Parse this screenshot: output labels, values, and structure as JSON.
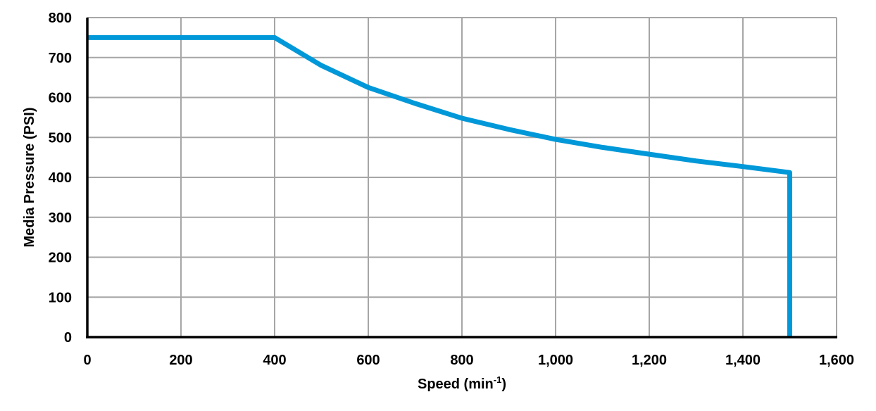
{
  "chart_data": {
    "type": "line",
    "title": "",
    "xlabel": "Speed (min-1)",
    "xlabel_main": "Speed (min",
    "xlabel_sup": "-1",
    "xlabel_close": ")",
    "ylabel": "Media Pressure (PSI)",
    "xlim": [
      0,
      1600
    ],
    "ylim": [
      0,
      800
    ],
    "x_ticks": [
      "0",
      "200",
      "400",
      "600",
      "800",
      "1,000",
      "1,200",
      "1,400",
      "1,600"
    ],
    "y_ticks": [
      "0",
      "100",
      "200",
      "300",
      "400",
      "500",
      "600",
      "700",
      "800"
    ],
    "grid": true,
    "legend": null,
    "series": [
      {
        "name": "Media Pressure",
        "color": "#0098D8",
        "x": [
          0,
          400,
          500,
          600,
          700,
          800,
          900,
          1000,
          1100,
          1200,
          1300,
          1400,
          1500,
          1500
        ],
        "y": [
          750,
          750,
          680,
          625,
          585,
          548,
          520,
          495,
          475,
          458,
          441,
          427,
          412,
          0
        ]
      }
    ]
  }
}
